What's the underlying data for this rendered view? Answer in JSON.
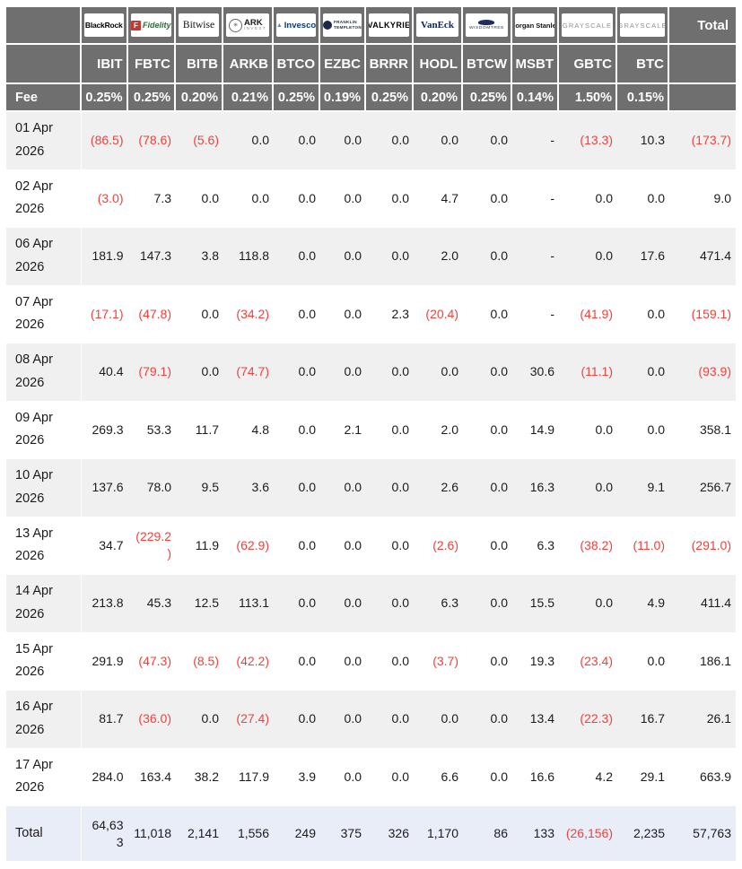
{
  "chart_data": {
    "type": "table",
    "description": "Bitcoin ETF daily flows by issuer",
    "fee_row_label": "Fee",
    "total_column_label": "Total",
    "total_row_label": "Total",
    "issuers": [
      {
        "name": "BlackRock",
        "logo": "blackrock",
        "ticker": "IBIT",
        "fee": "0.25%"
      },
      {
        "name": "Fidelity",
        "logo": "fidelity",
        "ticker": "FBTC",
        "fee": "0.25%"
      },
      {
        "name": "Bitwise",
        "logo": "bitwise",
        "ticker": "BITB",
        "fee": "0.20%"
      },
      {
        "name": "ARK Invest",
        "logo": "ark-invest",
        "ticker": "ARKB",
        "fee": "0.21%"
      },
      {
        "name": "Invesco",
        "logo": "invesco",
        "ticker": "BTCO",
        "fee": "0.25%"
      },
      {
        "name": "Franklin Templeton",
        "logo": "franklin-templeton",
        "ticker": "EZBC",
        "fee": "0.19%"
      },
      {
        "name": "Valkyrie",
        "logo": "valkyrie",
        "ticker": "BRRR",
        "fee": "0.25%"
      },
      {
        "name": "VanEck",
        "logo": "vaneck",
        "ticker": "HODL",
        "fee": "0.20%"
      },
      {
        "name": "WisdomTree",
        "logo": "wisdomtree",
        "ticker": "BTCW",
        "fee": "0.25%"
      },
      {
        "name": "Morgan Stanley",
        "logo": "morgan-stanley",
        "ticker": "MSBT",
        "fee": "0.14%"
      },
      {
        "name": "Grayscale",
        "logo": "grayscale",
        "ticker": "GBTC",
        "fee": "1.50%"
      },
      {
        "name": "Grayscale",
        "logo": "grayscale",
        "ticker": "BTC",
        "fee": "0.15%"
      }
    ],
    "rows": [
      {
        "date": "01 Apr 2026",
        "values": [
          "(86.5)",
          "(78.6)",
          "(5.6)",
          "0.0",
          "0.0",
          "0.0",
          "0.0",
          "0.0",
          "0.0",
          "-",
          "(13.3)",
          "10.3",
          "(173.7)"
        ]
      },
      {
        "date": "02 Apr 2026",
        "values": [
          "(3.0)",
          "7.3",
          "0.0",
          "0.0",
          "0.0",
          "0.0",
          "0.0",
          "4.7",
          "0.0",
          "-",
          "0.0",
          "0.0",
          "9.0"
        ]
      },
      {
        "date": "06 Apr 2026",
        "values": [
          "181.9",
          "147.3",
          "3.8",
          "118.8",
          "0.0",
          "0.0",
          "0.0",
          "2.0",
          "0.0",
          "-",
          "0.0",
          "17.6",
          "471.4"
        ]
      },
      {
        "date": "07 Apr 2026",
        "values": [
          "(17.1)",
          "(47.8)",
          "0.0",
          "(34.2)",
          "0.0",
          "0.0",
          "2.3",
          "(20.4)",
          "0.0",
          "-",
          "(41.9)",
          "0.0",
          "(159.1)"
        ]
      },
      {
        "date": "08 Apr 2026",
        "values": [
          "40.4",
          "(79.1)",
          "0.0",
          "(74.7)",
          "0.0",
          "0.0",
          "0.0",
          "0.0",
          "0.0",
          "30.6",
          "(11.1)",
          "0.0",
          "(93.9)"
        ]
      },
      {
        "date": "09 Apr 2026",
        "values": [
          "269.3",
          "53.3",
          "11.7",
          "4.8",
          "0.0",
          "2.1",
          "0.0",
          "2.0",
          "0.0",
          "14.9",
          "0.0",
          "0.0",
          "358.1"
        ]
      },
      {
        "date": "10 Apr 2026",
        "values": [
          "137.6",
          "78.0",
          "9.5",
          "3.6",
          "0.0",
          "0.0",
          "0.0",
          "2.6",
          "0.0",
          "16.3",
          "0.0",
          "9.1",
          "256.7"
        ]
      },
      {
        "date": "13 Apr 2026",
        "values": [
          "34.7",
          "(229.2)",
          "11.9",
          "(62.9)",
          "0.0",
          "0.0",
          "0.0",
          "(2.6)",
          "0.0",
          "6.3",
          "(38.2)",
          "(11.0)",
          "(291.0)"
        ]
      },
      {
        "date": "14 Apr 2026",
        "values": [
          "213.8",
          "45.3",
          "12.5",
          "113.1",
          "0.0",
          "0.0",
          "0.0",
          "6.3",
          "0.0",
          "15.5",
          "0.0",
          "4.9",
          "411.4"
        ]
      },
      {
        "date": "15 Apr 2026",
        "values": [
          "291.9",
          "(47.3)",
          "(8.5)",
          "(42.2)",
          "0.0",
          "0.0",
          "0.0",
          "(3.7)",
          "0.0",
          "19.3",
          "(23.4)",
          "0.0",
          "186.1"
        ]
      },
      {
        "date": "16 Apr 2026",
        "values": [
          "81.7",
          "(36.0)",
          "0.0",
          "(27.4)",
          "0.0",
          "0.0",
          "0.0",
          "0.0",
          "0.0",
          "13.4",
          "(22.3)",
          "16.7",
          "26.1"
        ]
      },
      {
        "date": "17 Apr 2026",
        "values": [
          "284.0",
          "163.4",
          "38.2",
          "117.9",
          "3.9",
          "0.0",
          "0.0",
          "6.6",
          "0.0",
          "16.6",
          "4.2",
          "29.1",
          "663.9"
        ]
      }
    ],
    "total_row": {
      "label": "Total",
      "values": [
        "64,633",
        "11,018",
        "2,141",
        "1,556",
        "249",
        "375",
        "326",
        "1,170",
        "86",
        "133",
        "(26,156)",
        "2,235",
        "57,763"
      ]
    }
  },
  "colors": {
    "header_bg": "#6f6f6f",
    "negative_text": "#f0413b",
    "stripe_row_bg": "#f0f0f0",
    "total_row_bg": "#e9edf8"
  }
}
